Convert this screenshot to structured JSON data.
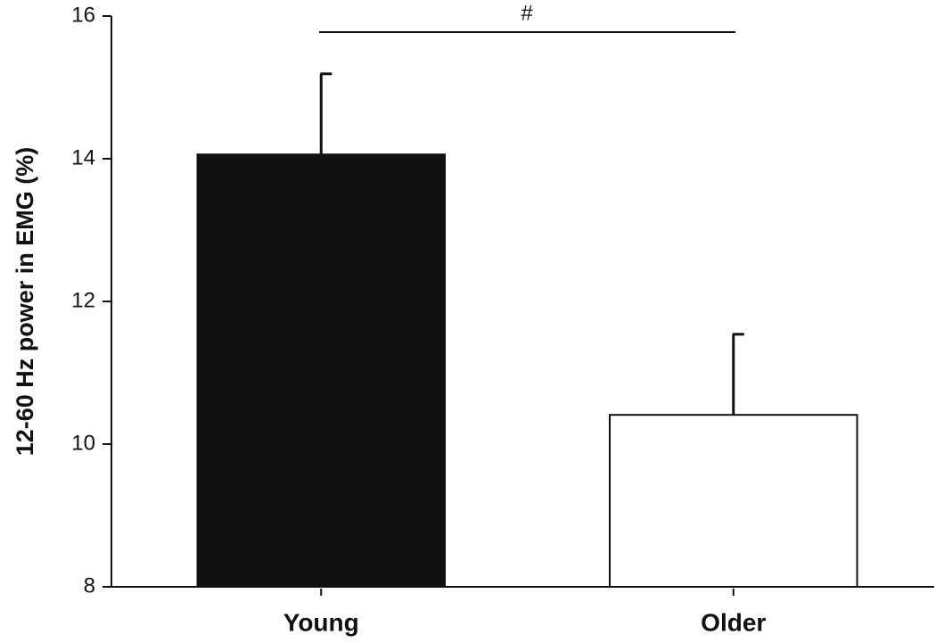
{
  "chart_data": {
    "type": "bar",
    "y_label": "12-60 Hz power in EMG (%)",
    "categories": [
      "Young",
      "Older"
    ],
    "values": [
      14.06,
      10.41
    ],
    "errors": [
      1.13,
      1.13
    ],
    "colors": [
      "#111111",
      "#ffffff"
    ],
    "annotation": "#",
    "ylim": [
      8,
      16
    ],
    "yticks": [
      8,
      10,
      12,
      14,
      16
    ],
    "grid": false
  }
}
